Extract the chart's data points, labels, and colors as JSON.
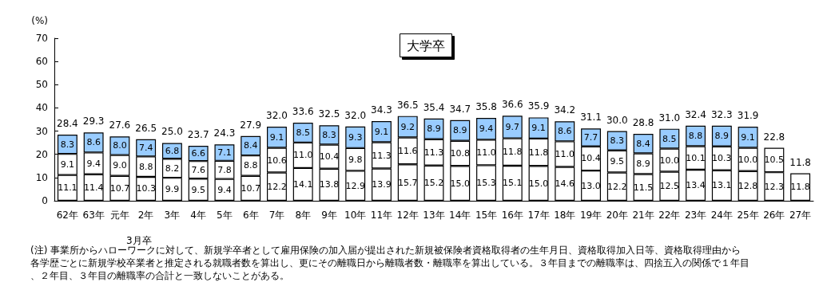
{
  "chart_data": {
    "type": "bar",
    "title": "大学卒",
    "ylabel": "(%)",
    "xlabel": "3月卒",
    "categories": [
      "62年",
      "63年",
      "元年",
      "2年",
      "3年",
      "4年",
      "5年",
      "6年",
      "7年",
      "8年",
      "9年",
      "10年",
      "11年",
      "12年",
      "13年",
      "14年",
      "15年",
      "16年",
      "17年",
      "18年",
      "19年",
      "20年",
      "21年",
      "22年",
      "23年",
      "24年",
      "25年",
      "26年",
      "27年"
    ],
    "stacked": true,
    "ylim": [
      0,
      70
    ],
    "yticks": [
      0,
      10,
      20,
      30,
      40,
      50,
      60,
      70
    ],
    "series": [
      {
        "color": "#ffffff",
        "values": [
          11.1,
          11.4,
          10.7,
          10.3,
          9.9,
          9.5,
          9.4,
          10.7,
          12.2,
          14.1,
          13.8,
          12.9,
          13.9,
          15.7,
          15.2,
          15.0,
          15.3,
          15.1,
          15.0,
          14.6,
          13.0,
          12.2,
          11.5,
          12.5,
          13.4,
          13.1,
          12.8,
          12.3,
          11.8
        ],
        "value_labels": [
          "11.1",
          "11.4",
          "10.7",
          "10.3",
          "9.9",
          "9.5",
          "9.4",
          "10.7",
          "12.2",
          "14.1",
          "13.8",
          "12.9",
          "13.9",
          "15.7",
          "15.2",
          "15.0",
          "15.3",
          "15.1",
          "15.0",
          "14.6",
          "13.0",
          "12.2",
          "11.5",
          "12.5",
          "13.4",
          "13.1",
          "12.8",
          "12.3",
          "11.8"
        ]
      },
      {
        "color": "#ffffff",
        "values": [
          9.1,
          9.4,
          9.0,
          8.8,
          8.2,
          7.6,
          7.8,
          8.8,
          10.6,
          11.0,
          10.4,
          9.8,
          11.3,
          11.6,
          11.3,
          10.8,
          11.0,
          11.8,
          11.8,
          11.0,
          10.4,
          9.5,
          8.9,
          10.0,
          10.1,
          10.3,
          10.0,
          10.5,
          null
        ],
        "value_labels": [
          "9.1",
          "9.4",
          "9.0",
          "8.8",
          "8.2",
          "7.6",
          "7.8",
          "8.8",
          "10.6",
          "11.0",
          "10.4",
          "9.8",
          "11.3",
          "11.6",
          "11.3",
          "10.8",
          "11.0",
          "11.8",
          "11.8",
          "11.0",
          "10.4",
          "9.5",
          "8.9",
          "10.0",
          "10.1",
          "10.3",
          "10.0",
          "10.5",
          null
        ]
      },
      {
        "color": "#99ccff",
        "values": [
          8.3,
          8.6,
          8.0,
          7.4,
          6.8,
          6.6,
          7.1,
          8.4,
          9.1,
          8.5,
          8.3,
          9.3,
          9.1,
          9.2,
          8.9,
          8.9,
          9.4,
          9.7,
          9.1,
          8.6,
          7.7,
          8.3,
          8.4,
          8.5,
          8.8,
          8.9,
          9.1,
          null,
          null
        ],
        "value_labels": [
          "8.3",
          "8.6",
          "8.0",
          "7.4",
          "6.8",
          "6.6",
          "7.1",
          "8.4",
          "9.1",
          "8.5",
          "8.3",
          "9.3",
          "9.1",
          "9.2",
          "8.9",
          "8.9",
          "9.4",
          "9.7",
          "9.1",
          "8.6",
          "7.7",
          "8.3",
          "8.4",
          "8.5",
          "8.8",
          "8.9",
          "9.1",
          null,
          null
        ]
      }
    ],
    "totals": [
      "28.4",
      "29.3",
      "27.6",
      "26.5",
      "25.0",
      "23.7",
      "24.3",
      "27.9",
      "32.0",
      "33.6",
      "32.5",
      "32.0",
      "34.3",
      "36.5",
      "35.4",
      "34.7",
      "35.8",
      "36.6",
      "35.9",
      "34.2",
      "31.1",
      "30.0",
      "28.8",
      "31.0",
      "32.4",
      "32.3",
      "31.9",
      "22.8",
      "11.8"
    ],
    "annotations": [
      "(注) 事業所からハローワークに対して、新規学卒者として雇用保険の加入届が提出された新規被保険者資格取得者の生年月日、資格取得加入日等、資格取得理由から各学歴ごとに新規学校卒業者と推定される就職者数を算出し、更にその離職日から離職者数・離職率を算出している。３年目までの離職率は、四捨五入の関係で１年目、２年目、３年目の離職率の合計と一致しないことがある。"
    ]
  }
}
